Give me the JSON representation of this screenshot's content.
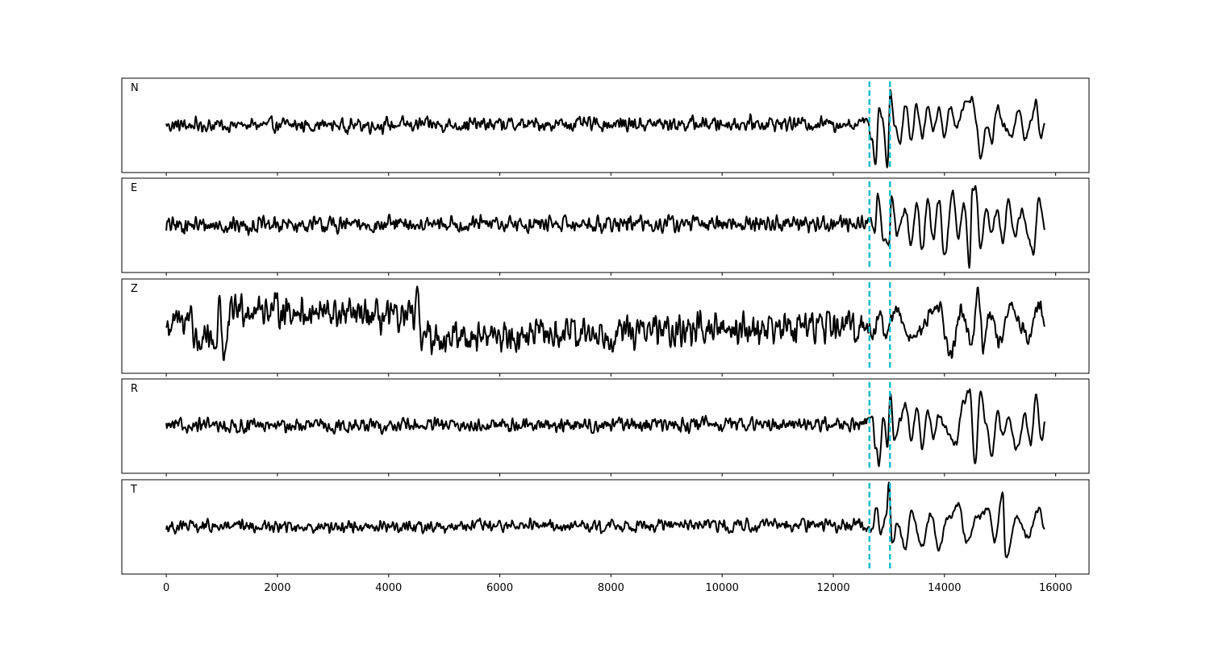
{
  "chart_data": {
    "type": "line",
    "layout": "stacked-panels",
    "sharex": true,
    "xlim": [
      -800,
      16600
    ],
    "x_ticks": [
      0,
      2000,
      4000,
      6000,
      8000,
      10000,
      12000,
      14000,
      16000
    ],
    "x_tick_labels": [
      "0",
      "2000",
      "4000",
      "6000",
      "8000",
      "10000",
      "12000",
      "14000",
      "16000"
    ],
    "y_ticks_visible": false,
    "grid": false,
    "legend": "none",
    "line_color": "#000000",
    "marker_color": "#17becf",
    "markers": {
      "style": "dashed-vertical-lines",
      "x": [
        12650,
        13020
      ]
    },
    "series": [
      {
        "label": "N",
        "x_range": [
          0,
          15800
        ],
        "ylim": [
          -1.3,
          1.3
        ],
        "noise_amp": 0.17,
        "keypoints": [
          [
            0,
            0
          ],
          [
            12500,
            0.05
          ],
          [
            12600,
            0.2
          ],
          [
            12700,
            -0.4
          ],
          [
            12760,
            -1.1
          ],
          [
            12820,
            0.5
          ],
          [
            12900,
            0.1
          ],
          [
            12970,
            -1.2
          ],
          [
            13030,
            1.0
          ],
          [
            13100,
            0.0
          ],
          [
            13200,
            -0.45
          ],
          [
            13300,
            0.6
          ],
          [
            13400,
            -0.4
          ],
          [
            13500,
            0.55
          ],
          [
            13600,
            -0.3
          ],
          [
            13700,
            0.55
          ],
          [
            13800,
            -0.2
          ],
          [
            13900,
            0.5
          ],
          [
            14000,
            -0.35
          ],
          [
            14100,
            0.55
          ],
          [
            14200,
            0.0
          ],
          [
            14400,
            0.65
          ],
          [
            14500,
            0.75
          ],
          [
            14580,
            0.0
          ],
          [
            14650,
            -0.9
          ],
          [
            14750,
            0.0
          ],
          [
            14850,
            -0.4
          ],
          [
            14950,
            0.55
          ],
          [
            15050,
            0.0
          ],
          [
            15200,
            -0.3
          ],
          [
            15350,
            0.45
          ],
          [
            15450,
            -0.4
          ],
          [
            15550,
            0.1
          ],
          [
            15650,
            0.65
          ],
          [
            15720,
            -0.3
          ],
          [
            15800,
            0.0
          ]
        ]
      },
      {
        "label": "E",
        "x_range": [
          0,
          15800
        ],
        "ylim": [
          -1.3,
          1.3
        ],
        "noise_amp": 0.2,
        "keypoints": [
          [
            0,
            0
          ],
          [
            12550,
            0.05
          ],
          [
            12650,
            0.2
          ],
          [
            12750,
            -0.2
          ],
          [
            12800,
            0.85
          ],
          [
            12900,
            -0.3
          ],
          [
            13000,
            -0.5
          ],
          [
            13050,
            0.8
          ],
          [
            13150,
            -0.3
          ],
          [
            13300,
            0.45
          ],
          [
            13400,
            -0.6
          ],
          [
            13500,
            0.7
          ],
          [
            13600,
            -0.7
          ],
          [
            13700,
            0.7
          ],
          [
            13800,
            -0.4
          ],
          [
            13900,
            0.75
          ],
          [
            14000,
            -0.9
          ],
          [
            14150,
            0.9
          ],
          [
            14250,
            -0.3
          ],
          [
            14350,
            0.6
          ],
          [
            14450,
            -1.1
          ],
          [
            14500,
            1.0
          ],
          [
            14560,
            1.0
          ],
          [
            14650,
            -0.6
          ],
          [
            14750,
            0.4
          ],
          [
            14850,
            -0.2
          ],
          [
            14950,
            0.5
          ],
          [
            15050,
            -0.5
          ],
          [
            15150,
            0.8
          ],
          [
            15250,
            -0.3
          ],
          [
            15400,
            0.4
          ],
          [
            15500,
            -0.3
          ],
          [
            15600,
            -0.8
          ],
          [
            15700,
            0.8
          ],
          [
            15800,
            0.0
          ]
        ]
      },
      {
        "label": "Z",
        "x_range": [
          0,
          15800
        ],
        "ylim": [
          -1.3,
          1.3
        ],
        "noise_amp": 0.38,
        "keypoints": [
          [
            0,
            0
          ],
          [
            400,
            0.2
          ],
          [
            450,
            0.6
          ],
          [
            500,
            -0.4
          ],
          [
            900,
            -0.5
          ],
          [
            960,
            0.95
          ],
          [
            1030,
            -0.9
          ],
          [
            1200,
            0.5
          ],
          [
            4450,
            0.2
          ],
          [
            4520,
            0.75
          ],
          [
            4600,
            -0.3
          ],
          [
            12600,
            0.0
          ],
          [
            12700,
            -0.2
          ],
          [
            12850,
            0.35
          ],
          [
            12950,
            -0.3
          ],
          [
            13100,
            0.45
          ],
          [
            13400,
            -0.3
          ],
          [
            13900,
            0.55
          ],
          [
            14100,
            -0.8
          ],
          [
            14300,
            0.4
          ],
          [
            14500,
            -0.4
          ],
          [
            14600,
            1.1
          ],
          [
            14700,
            -0.6
          ],
          [
            14800,
            0.3
          ],
          [
            15000,
            -0.5
          ],
          [
            15200,
            0.6
          ],
          [
            15500,
            -0.3
          ],
          [
            15700,
            0.6
          ],
          [
            15800,
            0.0
          ]
        ]
      },
      {
        "label": "R",
        "x_range": [
          0,
          15800
        ],
        "ylim": [
          -1.3,
          1.3
        ],
        "noise_amp": 0.17,
        "keypoints": [
          [
            0,
            0
          ],
          [
            12500,
            0.05
          ],
          [
            12600,
            0.2
          ],
          [
            12700,
            0.3
          ],
          [
            12760,
            -0.6
          ],
          [
            12820,
            -1.05
          ],
          [
            12900,
            0.3
          ],
          [
            12970,
            -0.6
          ],
          [
            13030,
            0.9
          ],
          [
            13100,
            -0.4
          ],
          [
            13200,
            0.2
          ],
          [
            13300,
            0.6
          ],
          [
            13400,
            -0.3
          ],
          [
            13500,
            0.5
          ],
          [
            13600,
            -0.6
          ],
          [
            13700,
            0.4
          ],
          [
            13800,
            -0.3
          ],
          [
            13900,
            0.3
          ],
          [
            14000,
            0.0
          ],
          [
            14200,
            -0.5
          ],
          [
            14350,
            0.7
          ],
          [
            14450,
            1.0
          ],
          [
            14550,
            -1.1
          ],
          [
            14650,
            0.95
          ],
          [
            14750,
            0.0
          ],
          [
            14850,
            -0.8
          ],
          [
            14950,
            0.4
          ],
          [
            15050,
            -0.3
          ],
          [
            15150,
            0.2
          ],
          [
            15300,
            -0.6
          ],
          [
            15450,
            0.3
          ],
          [
            15550,
            -0.5
          ],
          [
            15650,
            0.8
          ],
          [
            15750,
            -0.5
          ],
          [
            15800,
            0.1
          ]
        ]
      },
      {
        "label": "T",
        "x_range": [
          0,
          15800
        ],
        "ylim": [
          -1.3,
          1.3
        ],
        "noise_amp": 0.15,
        "keypoints": [
          [
            0,
            0
          ],
          [
            12500,
            0.05
          ],
          [
            12700,
            -0.1
          ],
          [
            12780,
            0.6
          ],
          [
            12850,
            -0.2
          ],
          [
            12950,
            0.3
          ],
          [
            13000,
            1.2
          ],
          [
            13060,
            -0.5
          ],
          [
            13150,
            0.1
          ],
          [
            13300,
            -0.6
          ],
          [
            13400,
            0.4
          ],
          [
            13600,
            -0.5
          ],
          [
            13750,
            0.35
          ],
          [
            13900,
            -0.6
          ],
          [
            14050,
            0.2
          ],
          [
            14250,
            0.6
          ],
          [
            14400,
            -0.4
          ],
          [
            14600,
            0.3
          ],
          [
            14800,
            0.5
          ],
          [
            14900,
            -0.4
          ],
          [
            15050,
            0.9
          ],
          [
            15100,
            -0.9
          ],
          [
            15300,
            0.3
          ],
          [
            15500,
            -0.3
          ],
          [
            15700,
            0.5
          ],
          [
            15800,
            0.0
          ]
        ]
      }
    ]
  }
}
